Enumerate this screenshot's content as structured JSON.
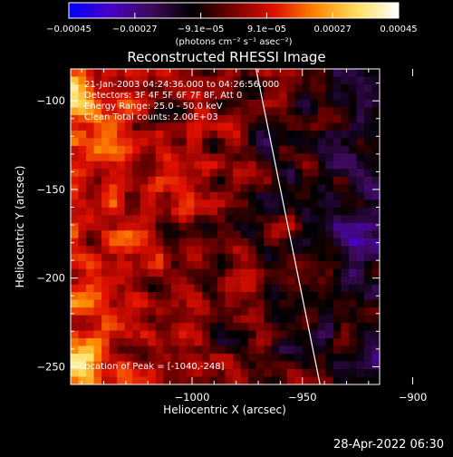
{
  "chart_data": {
    "type": "heatmap",
    "title": "Reconstructed RHESSI Image",
    "xlabel": "Heliocentric X (arcsec)",
    "ylabel": "Heliocentric Y (arcsec)",
    "xlim": [
      -1055,
      -915
    ],
    "ylim": [
      -260,
      -82
    ],
    "x_ticks": [
      -1000,
      -950,
      -900
    ],
    "x_tick_labels": [
      "−1000",
      "−950",
      "−900"
    ],
    "y_ticks": [
      -250,
      -200,
      -150,
      -100
    ],
    "y_tick_labels": [
      "−250",
      "−200",
      "−150",
      "−100"
    ],
    "colorbar": {
      "range": [
        -0.00045,
        0.00045
      ],
      "tick_labels": [
        "−0.00045",
        "−0.00027",
        "−9.1e−05",
        "9.1e−05",
        "0.00027",
        "0.00045"
      ],
      "units_text": "(photons cm⁻² s⁻¹ asec⁻²)",
      "colors": [
        "#0000ff",
        "#4a00c8",
        "#3c0a5a",
        "#000000",
        "#7a0000",
        "#e01000",
        "#ff8800",
        "#ffe060",
        "#ffffff"
      ]
    },
    "annotations": [
      "21-Jan-2003 04:24:36.000 to 04:26:56.000",
      "Detectors: 3F 4F 5F 6F 7F 8F, Att 0",
      "Energy Range: 25.0 - 50.0 keV",
      "Clean     Total counts: 2.00E+03"
    ],
    "peak_label": "Location of Peak = [-1040,-248]",
    "limb_line": [
      [
        -971,
        -82
      ],
      [
        -942,
        -260
      ]
    ]
  },
  "footer": {
    "timestamp": "28-Apr-2022 06:30"
  }
}
